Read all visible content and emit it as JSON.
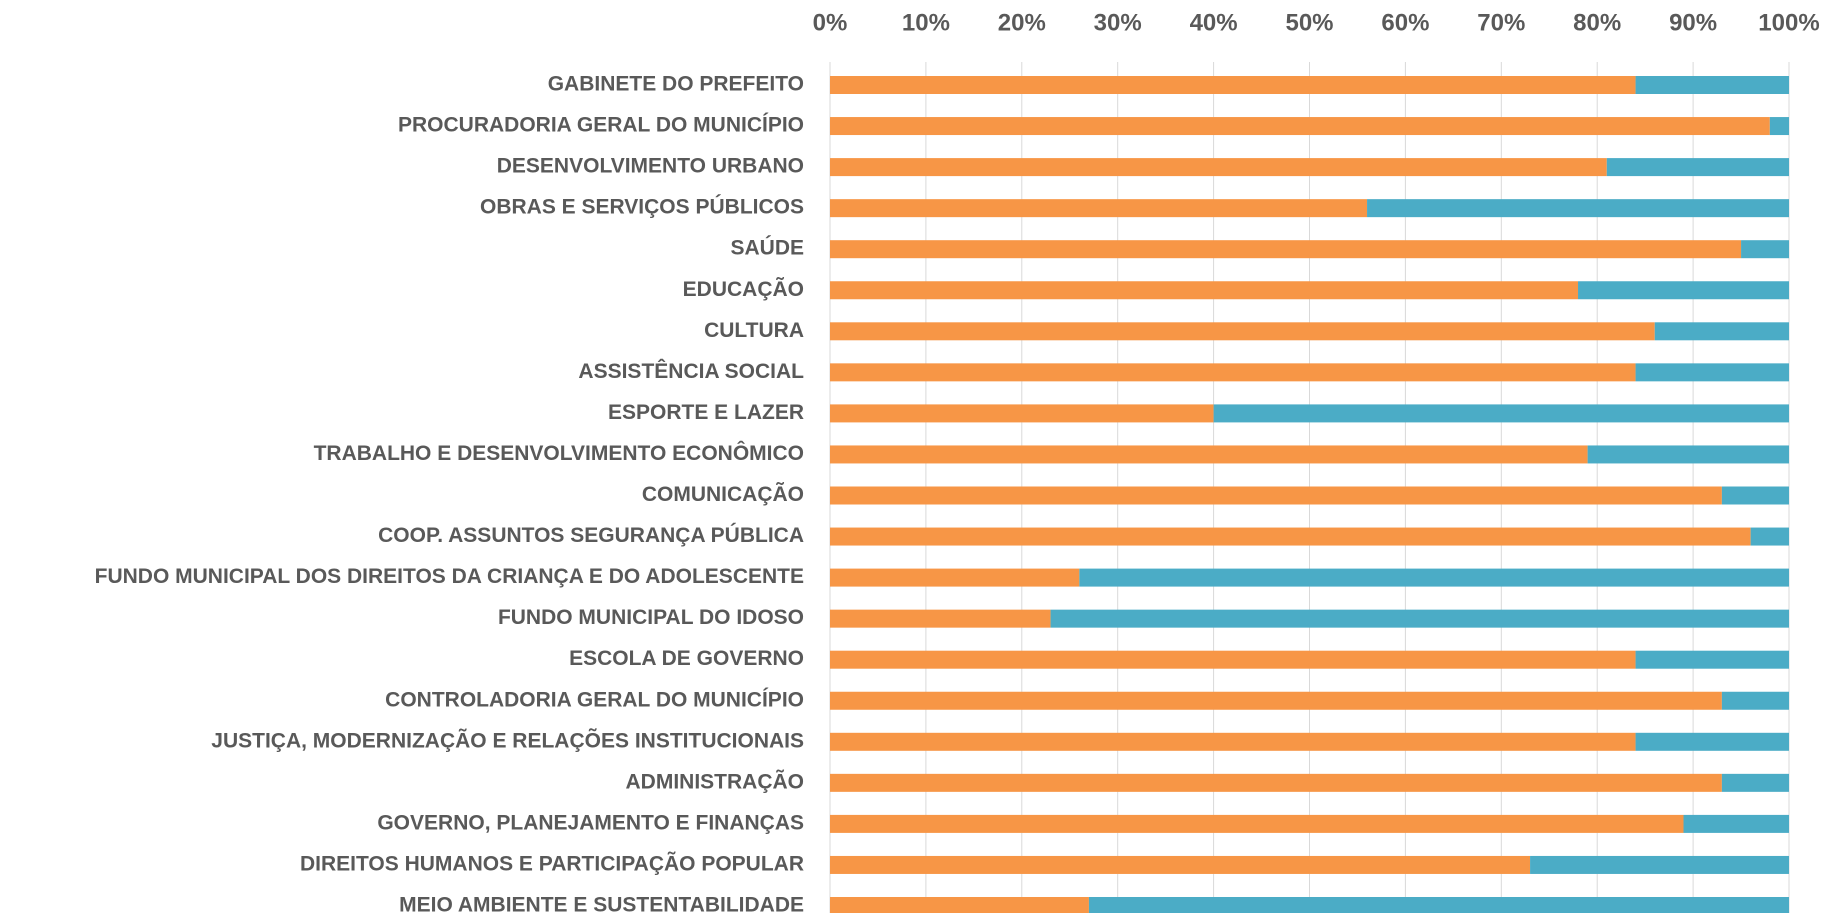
{
  "chart_data": {
    "type": "stacked-barh",
    "categories": [
      "GABINETE DO PREFEITO",
      "PROCURADORIA GERAL DO MUNICÍPIO",
      "DESENVOLVIMENTO URBANO",
      "OBRAS E SERVIÇOS PÚBLICOS",
      "SAÚDE",
      "EDUCAÇÃO",
      "CULTURA",
      "ASSISTÊNCIA SOCIAL",
      "ESPORTE E LAZER",
      "TRABALHO E DESENVOLVIMENTO ECONÔMICO",
      "COMUNICAÇÃO",
      "COOP. ASSUNTOS SEGURANÇA PÚBLICA",
      "FUNDO MUNICIPAL DOS DIREITOS DA CRIANÇA E DO ADOLESCENTE",
      "FUNDO MUNICIPAL DO IDOSO",
      "ESCOLA DE GOVERNO",
      "CONTROLADORIA GERAL DO MUNICÍPIO",
      "JUSTIÇA, MODERNIZAÇÃO E RELAÇÕES INSTITUCIONAIS",
      "ADMINISTRAÇÃO",
      "GOVERNO, PLANEJAMENTO E FINANÇAS",
      "DIREITOS HUMANOS E PARTICIPAÇÃO POPULAR",
      "MEIO AMBIENTE E SUSTENTABILIDADE"
    ],
    "series": [
      {
        "color": "#f79646",
        "values": [
          84,
          98,
          81,
          56,
          95,
          78,
          86,
          84,
          40,
          79,
          93,
          96,
          26,
          23,
          84,
          93,
          84,
          93,
          89,
          73,
          27
        ]
      },
      {
        "color": "#4bacc6",
        "values": [
          16,
          2,
          19,
          44,
          5,
          22,
          14,
          16,
          60,
          21,
          7,
          4,
          74,
          77,
          16,
          7,
          16,
          7,
          11,
          27,
          73
        ]
      }
    ],
    "xlim": [
      0,
      100
    ],
    "xticks": [
      {
        "value": 0,
        "label": "0%"
      },
      {
        "value": 10,
        "label": "10%"
      },
      {
        "value": 20,
        "label": "20%"
      },
      {
        "value": 30,
        "label": "30%"
      },
      {
        "value": 40,
        "label": "40%"
      },
      {
        "value": 50,
        "label": "50%"
      },
      {
        "value": 60,
        "label": "60%"
      },
      {
        "value": 70,
        "label": "70%"
      },
      {
        "value": 80,
        "label": "80%"
      },
      {
        "value": 90,
        "label": "90%"
      },
      {
        "value": 100,
        "label": "100%"
      }
    ],
    "grid": true
  }
}
